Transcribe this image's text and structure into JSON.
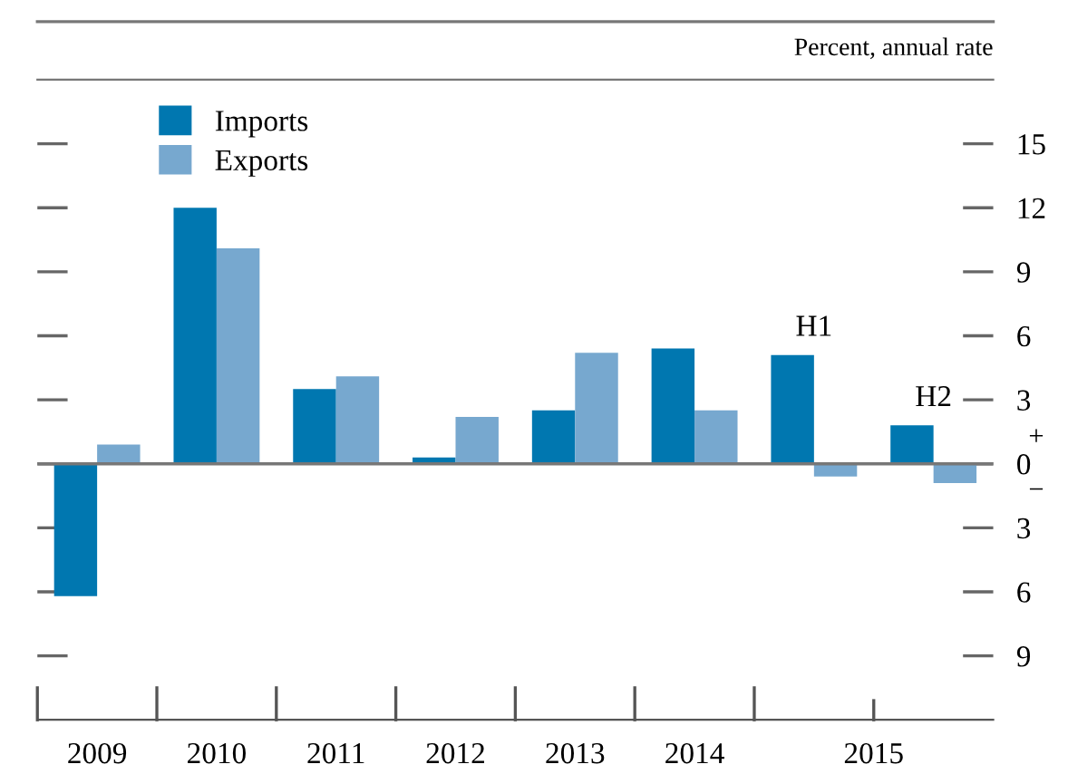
{
  "chart_data": {
    "type": "bar",
    "categories": [
      "2009",
      "2010",
      "2011",
      "2012",
      "2013",
      "2014",
      "H1",
      "H2"
    ],
    "series": [
      {
        "name": "Imports",
        "color": "#0077b0",
        "values": [
          -6.2,
          12.0,
          3.5,
          0.3,
          2.5,
          5.4,
          5.1,
          1.8
        ]
      },
      {
        "name": "Exports",
        "color": "#77a8cf",
        "values": [
          0.9,
          10.1,
          4.1,
          2.2,
          5.2,
          2.5,
          -0.6,
          -0.9
        ]
      }
    ],
    "ylabel": "Percent, annual rate",
    "ylim": [
      -12,
      18
    ],
    "yticks": [
      15,
      12,
      9,
      6,
      3,
      0,
      {
        "value": -3,
        "label": "3"
      },
      {
        "value": -6,
        "label": "6"
      },
      {
        "value": -9,
        "label": "9"
      }
    ],
    "annotations": [
      "2015",
      "+",
      "−"
    ],
    "legend": "top left",
    "grid": "y"
  }
}
